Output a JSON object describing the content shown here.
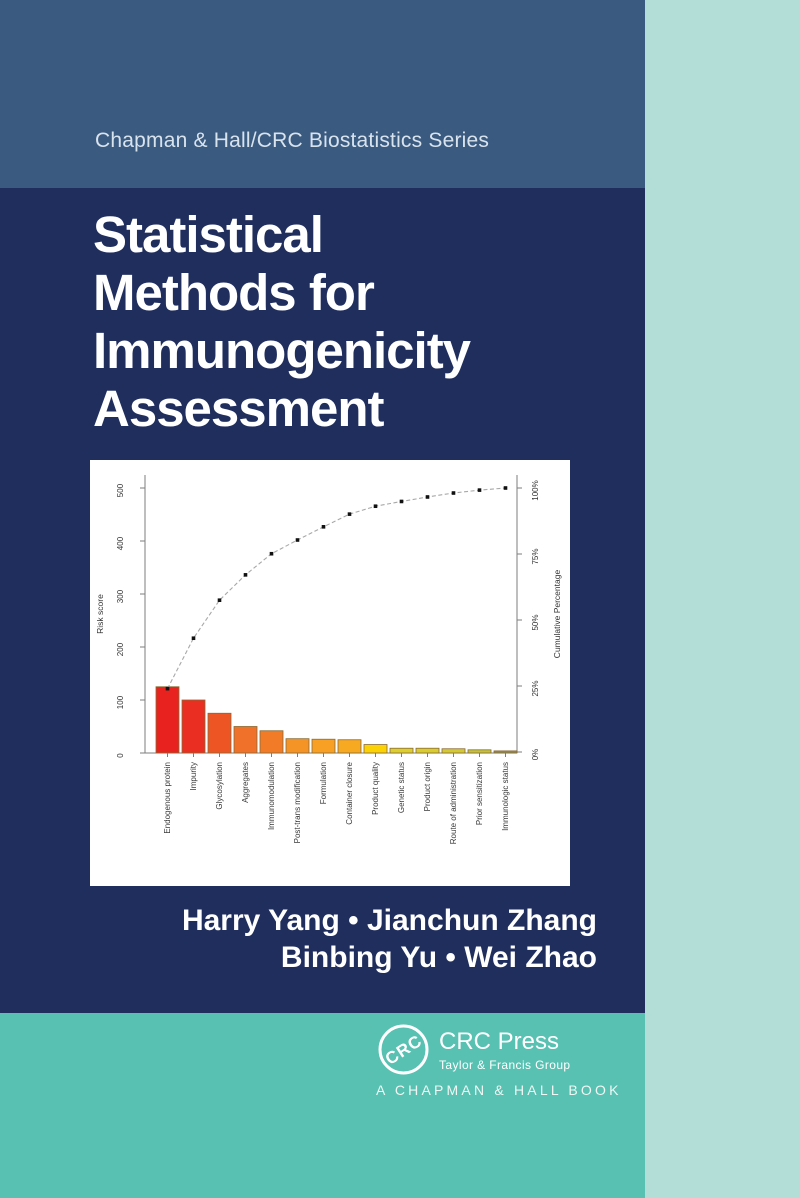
{
  "cover": {
    "series_label": "Chapman & Hall/CRC Biostatistics Series",
    "title_lines": [
      "Statistical",
      "Methods for",
      "Immunogenicity",
      "Assessment"
    ],
    "authors_line1": "Harry Yang • Jianchun Zhang",
    "authors_line2": "Binbing Yu • Wei Zhao",
    "colors": {
      "top_band": "#3a5a80",
      "navy": "#202e5e",
      "teal_band": "#58c1b2",
      "right_column": "#b3ded8",
      "chart_panel": "#ffffff"
    }
  },
  "publisher": {
    "logo_monogram": "CRC",
    "name": "CRC Press",
    "group": "Taylor & Francis Group",
    "tagline": "A CHAPMAN & HALL BOOK"
  },
  "chart_data": {
    "type": "bar",
    "title": "",
    "categories": [
      "Endogenous protein",
      "Impurity",
      "Glycosylation",
      "Aggregates",
      "Immunomodulation",
      "Post-trans modification",
      "Formulation",
      "Container closure",
      "Product quality",
      "Genetic status",
      "Product origin",
      "Route of administration",
      "Prior sensitization",
      "Immunologic status"
    ],
    "series": [
      {
        "name": "Risk score",
        "type": "bar",
        "values": [
          125,
          100,
          75,
          50,
          42,
          27,
          26,
          25,
          16,
          9,
          9,
          8,
          6,
          4
        ]
      },
      {
        "name": "Cumulative Percentage",
        "type": "line",
        "values": [
          24,
          43.1,
          57.5,
          67.1,
          75.1,
          80.3,
          85.3,
          90.1,
          93.1,
          94.9,
          96.6,
          98.1,
          99.2,
          100
        ]
      }
    ],
    "bar_colors": [
      "#e8231f",
      "#ea2f22",
      "#ee5524",
      "#f0722a",
      "#f27b27",
      "#f59426",
      "#f7a024",
      "#f8a922",
      "#fbd304",
      "#dbcf2d",
      "#d8cd2f",
      "#d2ca32",
      "#c2c339",
      "#8d8d55"
    ],
    "ylabel_left": "Risk score",
    "ylabel_right": "Cumulative Percentage",
    "yticks_left": [
      0,
      100,
      200,
      300,
      400,
      500
    ],
    "yticks_right_pct": [
      0,
      25,
      50,
      75,
      100
    ],
    "ylim_left": [
      0,
      530
    ],
    "ylim_right_pct": [
      0,
      105
    ],
    "grid": false,
    "legend": "none",
    "line_style": "dashed-gray-with-black-square-markers"
  }
}
